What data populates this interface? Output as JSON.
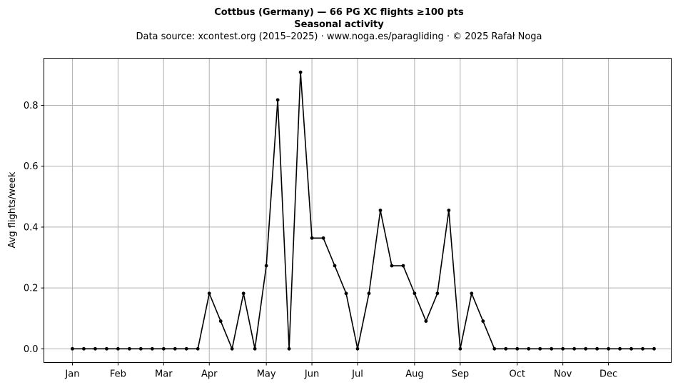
{
  "chart_data": {
    "type": "line",
    "title": "Cottbus (Germany)  —  66 PG XC flights ≥100 pts",
    "subtitle": "Seasonal activity",
    "source": "Data source: xcontest.org (2015–2025)  ·  www.noga.es/paragliding  ·  © 2025 Rafał Noga",
    "xlabel": "",
    "ylabel": "Avg flights/week",
    "x_unit": "week of year",
    "xlim": [
      -1.5,
      53.5
    ],
    "ylim": [
      -0.045,
      0.955
    ],
    "x_ticks": [
      {
        "label": "Jan",
        "week": 1
      },
      {
        "label": "Feb",
        "week": 5
      },
      {
        "label": "Mar",
        "week": 9
      },
      {
        "label": "Apr",
        "week": 13
      },
      {
        "label": "May",
        "week": 18
      },
      {
        "label": "Jun",
        "week": 22
      },
      {
        "label": "Jul",
        "week": 26
      },
      {
        "label": "Aug",
        "week": 31
      },
      {
        "label": "Sep",
        "week": 35
      },
      {
        "label": "Oct",
        "week": 40
      },
      {
        "label": "Nov",
        "week": 44
      },
      {
        "label": "Dec",
        "week": 48
      }
    ],
    "y_ticks": [
      {
        "label": "0.0",
        "value": 0.0
      },
      {
        "label": "0.2",
        "value": 0.2
      },
      {
        "label": "0.4",
        "value": 0.4
      },
      {
        "label": "0.6",
        "value": 0.6
      },
      {
        "label": "0.8",
        "value": 0.8
      }
    ],
    "grid": true,
    "series": [
      {
        "color": "#000000",
        "marker": "dot",
        "x": [
          1,
          2,
          3,
          4,
          5,
          6,
          7,
          8,
          9,
          10,
          11,
          12,
          13,
          14,
          15,
          16,
          17,
          18,
          19,
          20,
          21,
          22,
          23,
          24,
          25,
          26,
          27,
          28,
          29,
          30,
          31,
          32,
          33,
          34,
          35,
          36,
          37,
          38,
          39,
          40,
          41,
          42,
          43,
          44,
          45,
          46,
          47,
          48,
          49,
          50,
          51,
          52
        ],
        "values": [
          0,
          0,
          0,
          0,
          0,
          0,
          0,
          0,
          0,
          0,
          0,
          0,
          0.182,
          0.091,
          0,
          0.182,
          0,
          0.273,
          0.818,
          0,
          0.909,
          0.364,
          0.364,
          0.273,
          0.182,
          0,
          0.182,
          0.455,
          0.273,
          0.273,
          0.182,
          0.091,
          0.182,
          0.455,
          0,
          0.182,
          0.091,
          0,
          0,
          0,
          0,
          0,
          0,
          0,
          0,
          0,
          0,
          0,
          0,
          0,
          0,
          0
        ]
      }
    ]
  }
}
